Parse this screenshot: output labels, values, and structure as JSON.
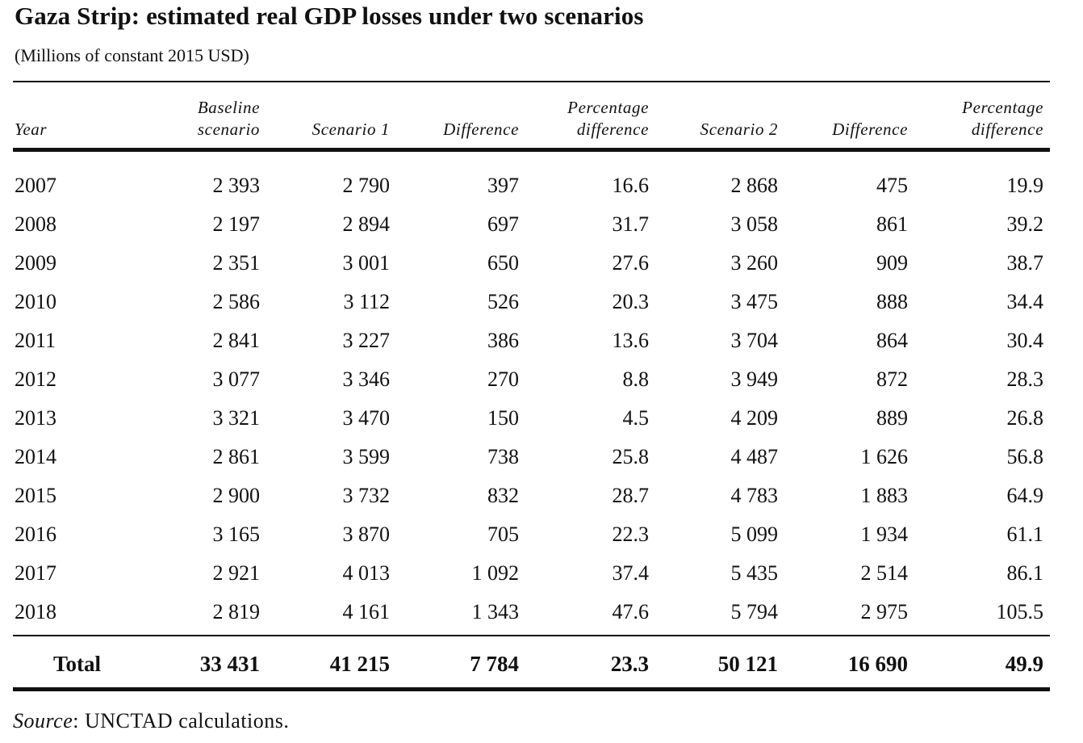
{
  "title": "Gaza Strip: estimated real GDP losses under two scenarios",
  "subtitle": "(Millions of constant 2015 USD)",
  "columns": {
    "year": "Year",
    "baseline_1": "Baseline",
    "baseline_2": "scenario",
    "scenario1": "Scenario 1",
    "diff1": "Difference",
    "pct1_1": "Percentage",
    "pct1_2": "difference",
    "scenario2": "Scenario 2",
    "diff2": "Difference",
    "pct2_1": "Percentage",
    "pct2_2": "difference"
  },
  "rows": [
    [
      "2007",
      "2 393",
      "2 790",
      "397",
      "16.6",
      "2 868",
      "475",
      "19.9"
    ],
    [
      "2008",
      "2 197",
      "2 894",
      "697",
      "31.7",
      "3 058",
      "861",
      "39.2"
    ],
    [
      "2009",
      "2 351",
      "3 001",
      "650",
      "27.6",
      "3 260",
      "909",
      "38.7"
    ],
    [
      "2010",
      "2 586",
      "3 112",
      "526",
      "20.3",
      "3 475",
      "888",
      "34.4"
    ],
    [
      "2011",
      "2 841",
      "3 227",
      "386",
      "13.6",
      "3 704",
      "864",
      "30.4"
    ],
    [
      "2012",
      "3 077",
      "3 346",
      "270",
      "8.8",
      "3 949",
      "872",
      "28.3"
    ],
    [
      "2013",
      "3 321",
      "3 470",
      "150",
      "4.5",
      "4 209",
      "889",
      "26.8"
    ],
    [
      "2014",
      "2 861",
      "3 599",
      "738",
      "25.8",
      "4 487",
      "1 626",
      "56.8"
    ],
    [
      "2015",
      "2 900",
      "3 732",
      "832",
      "28.7",
      "4 783",
      "1 883",
      "64.9"
    ],
    [
      "2016",
      "3 165",
      "3 870",
      "705",
      "22.3",
      "5 099",
      "1 934",
      "61.1"
    ],
    [
      "2017",
      "2 921",
      "4 013",
      "1 092",
      "37.4",
      "5 435",
      "2 514",
      "86.1"
    ],
    [
      "2018",
      "2 819",
      "4 161",
      "1 343",
      "47.6",
      "5 794",
      "2 975",
      "105.5"
    ]
  ],
  "total": [
    "Total",
    "33 431",
    "41 215",
    "7 784",
    "23.3",
    "50 121",
    "16 690",
    "49.9"
  ],
  "source": {
    "label": "Source",
    "text": ": UNCTAD calculations."
  }
}
